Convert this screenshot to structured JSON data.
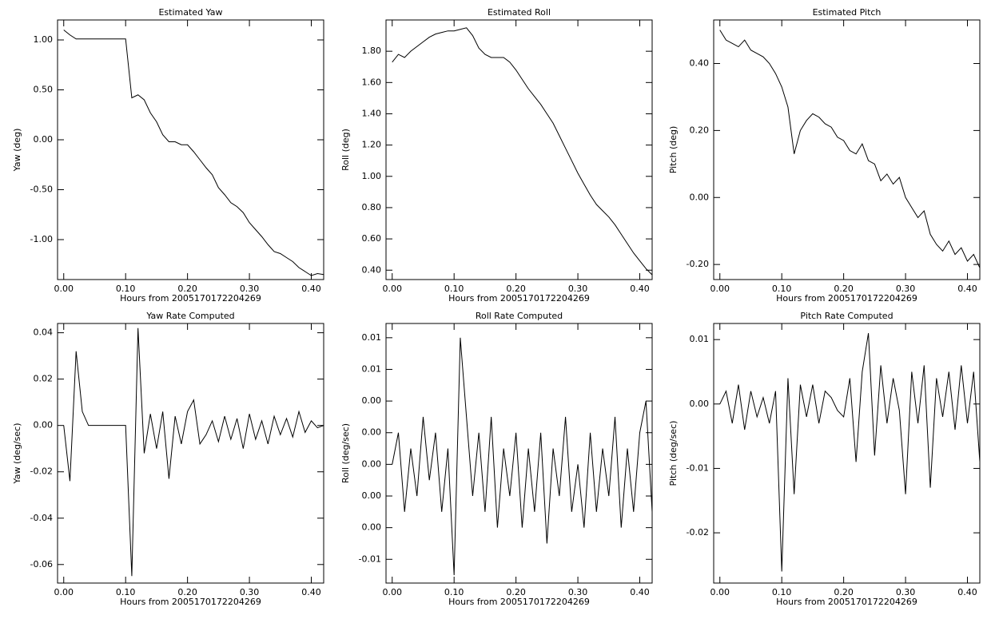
{
  "chart_data": [
    {
      "type": "line",
      "title": "Estimated Yaw",
      "xlabel": "Hours from 2005170172204269",
      "ylabel": "Yaw (deg)",
      "color": "#000000",
      "xlim": [
        -0.01,
        0.42
      ],
      "xticks": [
        {
          "value": 0,
          "label": "0.00"
        },
        {
          "value": 0.1,
          "label": "0.10"
        },
        {
          "value": 0.2,
          "label": "0.20"
        },
        {
          "value": 0.3,
          "label": "0.30"
        },
        {
          "value": 0.4,
          "label": "0.40"
        }
      ],
      "ylim": [
        -1.4,
        1.2
      ],
      "yticks": [
        {
          "value": 1,
          "label": "1.00"
        },
        {
          "value": 0.5,
          "label": "0.50"
        },
        {
          "value": 0,
          "label": "0.00"
        },
        {
          "value": -0.5,
          "label": "-0.50"
        },
        {
          "value": -1,
          "label": "-1.00"
        }
      ],
      "x": [
        0,
        0.01,
        0.02,
        0.03,
        0.04,
        0.05,
        0.06,
        0.07,
        0.08,
        0.09,
        0.1,
        0.11,
        0.12,
        0.13,
        0.14,
        0.15,
        0.16,
        0.17,
        0.18,
        0.19,
        0.2,
        0.21,
        0.22,
        0.23,
        0.24,
        0.25,
        0.26,
        0.27,
        0.28,
        0.29,
        0.3,
        0.31,
        0.32,
        0.33,
        0.34,
        0.35,
        0.36,
        0.37,
        0.38,
        0.39,
        0.4,
        0.41,
        0.42
      ],
      "values": [
        1.1,
        1.05,
        1.01,
        1.01,
        1.01,
        1.01,
        1.01,
        1.01,
        1.01,
        1.01,
        1.01,
        0.42,
        0.45,
        0.4,
        0.27,
        0.18,
        0.05,
        -0.02,
        -0.02,
        -0.05,
        -0.05,
        -0.12,
        -0.2,
        -0.28,
        -0.35,
        -0.48,
        -0.55,
        -0.63,
        -0.67,
        -0.73,
        -0.83,
        -0.9,
        -0.97,
        -1.05,
        -1.12,
        -1.14,
        -1.18,
        -1.22,
        -1.28,
        -1.32,
        -1.36,
        -1.34,
        -1.35
      ]
    },
    {
      "type": "line",
      "title": "Estimated Roll",
      "xlabel": "Hours from 2005170172204269",
      "ylabel": "Roll (deg)",
      "color": "#000000",
      "xlim": [
        -0.01,
        0.42
      ],
      "xticks": [
        {
          "value": 0,
          "label": "0.00"
        },
        {
          "value": 0.1,
          "label": "0.10"
        },
        {
          "value": 0.2,
          "label": "0.20"
        },
        {
          "value": 0.3,
          "label": "0.30"
        },
        {
          "value": 0.4,
          "label": "0.40"
        }
      ],
      "ylim": [
        0.34,
        2.0
      ],
      "yticks": [
        {
          "value": 1.8,
          "label": "1.80"
        },
        {
          "value": 1.6,
          "label": "1.60"
        },
        {
          "value": 1.4,
          "label": "1.40"
        },
        {
          "value": 1.2,
          "label": "1.20"
        },
        {
          "value": 1,
          "label": "1.00"
        },
        {
          "value": 0.8,
          "label": "0.80"
        },
        {
          "value": 0.6,
          "label": "0.60"
        },
        {
          "value": 0.4,
          "label": "0.40"
        }
      ],
      "x": [
        0,
        0.01,
        0.02,
        0.03,
        0.04,
        0.05,
        0.06,
        0.07,
        0.08,
        0.09,
        0.1,
        0.11,
        0.12,
        0.13,
        0.14,
        0.15,
        0.16,
        0.17,
        0.18,
        0.19,
        0.2,
        0.21,
        0.22,
        0.23,
        0.24,
        0.25,
        0.26,
        0.27,
        0.28,
        0.29,
        0.3,
        0.31,
        0.32,
        0.33,
        0.34,
        0.35,
        0.36,
        0.37,
        0.38,
        0.39,
        0.4,
        0.41,
        0.42
      ],
      "values": [
        1.73,
        1.78,
        1.76,
        1.8,
        1.83,
        1.86,
        1.89,
        1.91,
        1.92,
        1.93,
        1.93,
        1.94,
        1.95,
        1.9,
        1.82,
        1.78,
        1.76,
        1.76,
        1.76,
        1.73,
        1.68,
        1.62,
        1.56,
        1.51,
        1.46,
        1.4,
        1.34,
        1.26,
        1.18,
        1.1,
        1.02,
        0.95,
        0.88,
        0.82,
        0.78,
        0.74,
        0.69,
        0.63,
        0.57,
        0.51,
        0.46,
        0.41,
        0.37
      ]
    },
    {
      "type": "line",
      "title": "Estimated Pitch",
      "xlabel": "Hours from 2005170172204269",
      "ylabel": "Pitch (deg)",
      "color": "#000000",
      "xlim": [
        -0.01,
        0.42
      ],
      "xticks": [
        {
          "value": 0,
          "label": "0.00"
        },
        {
          "value": 0.1,
          "label": "0.10"
        },
        {
          "value": 0.2,
          "label": "0.20"
        },
        {
          "value": 0.3,
          "label": "0.30"
        },
        {
          "value": 0.4,
          "label": "0.40"
        }
      ],
      "ylim": [
        -0.245,
        0.53
      ],
      "yticks": [
        {
          "value": 0.4,
          "label": "0.40"
        },
        {
          "value": 0.2,
          "label": "0.20"
        },
        {
          "value": 0,
          "label": "0.00"
        },
        {
          "value": -0.2,
          "label": "-0.20"
        }
      ],
      "x": [
        0,
        0.01,
        0.02,
        0.03,
        0.04,
        0.05,
        0.06,
        0.07,
        0.08,
        0.09,
        0.1,
        0.11,
        0.12,
        0.13,
        0.14,
        0.15,
        0.16,
        0.17,
        0.18,
        0.19,
        0.2,
        0.21,
        0.22,
        0.23,
        0.24,
        0.25,
        0.26,
        0.27,
        0.28,
        0.29,
        0.3,
        0.31,
        0.32,
        0.33,
        0.34,
        0.35,
        0.36,
        0.37,
        0.38,
        0.39,
        0.4,
        0.41,
        0.42
      ],
      "values": [
        0.5,
        0.47,
        0.46,
        0.45,
        0.47,
        0.44,
        0.43,
        0.42,
        0.4,
        0.37,
        0.33,
        0.27,
        0.13,
        0.2,
        0.23,
        0.25,
        0.24,
        0.22,
        0.21,
        0.18,
        0.17,
        0.14,
        0.13,
        0.16,
        0.11,
        0.1,
        0.05,
        0.07,
        0.04,
        0.06,
        0,
        -0.03,
        -0.06,
        -0.04,
        -0.11,
        -0.14,
        -0.16,
        -0.13,
        -0.17,
        -0.15,
        -0.19,
        -0.17,
        -0.21
      ]
    },
    {
      "type": "line",
      "title": "Yaw Rate Computed",
      "xlabel": "Hours from 2005170172204269",
      "ylabel": "Yaw (deg/sec)",
      "color": "#000000",
      "xlim": [
        -0.01,
        0.42
      ],
      "xticks": [
        {
          "value": 0,
          "label": "0.00"
        },
        {
          "value": 0.1,
          "label": "0.10"
        },
        {
          "value": 0.2,
          "label": "0.20"
        },
        {
          "value": 0.3,
          "label": "0.30"
        },
        {
          "value": 0.4,
          "label": "0.40"
        }
      ],
      "ylim": [
        -0.068,
        0.044
      ],
      "yticks": [
        0.04,
        0.02,
        {
          "value": 0,
          "label": "0.00"
        },
        -0.02,
        -0.04,
        -0.06
      ],
      "x": [
        0,
        0.01,
        0.02,
        0.03,
        0.04,
        0.05,
        0.06,
        0.07,
        0.08,
        0.09,
        0.1,
        0.11,
        0.12,
        0.13,
        0.14,
        0.15,
        0.16,
        0.17,
        0.18,
        0.19,
        0.2,
        0.21,
        0.22,
        0.23,
        0.24,
        0.25,
        0.26,
        0.27,
        0.28,
        0.29,
        0.3,
        0.31,
        0.32,
        0.33,
        0.34,
        0.35,
        0.36,
        0.37,
        0.38,
        0.39,
        0.4,
        0.41,
        0.42
      ],
      "values": [
        0,
        -0.024,
        0.032,
        0.006,
        0,
        0,
        0,
        0,
        0,
        0,
        0,
        -0.065,
        0.042,
        -0.012,
        0.005,
        -0.01,
        0.006,
        -0.023,
        0.004,
        -0.008,
        0.006,
        0.011,
        -0.008,
        -0.004,
        0.002,
        -0.007,
        0.004,
        -0.006,
        0.003,
        -0.01,
        0.005,
        -0.006,
        0.002,
        -0.008,
        0.004,
        -0.004,
        0.003,
        -0.005,
        0.006,
        -0.003,
        0.002,
        -0.001,
        0
      ]
    },
    {
      "type": "line",
      "title": "Roll Rate Computed",
      "xlabel": "Hours from 2005170172204269",
      "ylabel": "Roll (deg/sec)",
      "color": "#000000",
      "xlim": [
        -0.01,
        0.42
      ],
      "xticks": [
        {
          "value": 0,
          "label": "0.00"
        },
        {
          "value": 0.1,
          "label": "0.10"
        },
        {
          "value": 0.2,
          "label": "0.20"
        },
        {
          "value": 0.3,
          "label": "0.30"
        },
        {
          "value": 0.4,
          "label": "0.40"
        }
      ],
      "ylim": [
        -0.0075,
        0.0089
      ],
      "yticks": [
        {
          "value": 0.008,
          "label": "0.01"
        },
        {
          "value": 0.006,
          "label": "0.01"
        },
        {
          "value": 0.004,
          "label": "0.00"
        },
        {
          "value": 0.002,
          "label": "0.00"
        },
        {
          "value": 0,
          "label": "0.00"
        },
        {
          "value": -0.002,
          "label": "0.00"
        },
        {
          "value": -0.004,
          "label": "0.00"
        },
        {
          "value": -0.006,
          "label": "-0.01"
        }
      ],
      "x": [
        0,
        0.01,
        0.02,
        0.03,
        0.04,
        0.05,
        0.06,
        0.07,
        0.08,
        0.09,
        0.1,
        0.11,
        0.12,
        0.13,
        0.14,
        0.15,
        0.16,
        0.17,
        0.18,
        0.19,
        0.2,
        0.21,
        0.22,
        0.23,
        0.24,
        0.25,
        0.26,
        0.27,
        0.28,
        0.29,
        0.3,
        0.31,
        0.32,
        0.33,
        0.34,
        0.35,
        0.36,
        0.37,
        0.38,
        0.39,
        0.4,
        0.41,
        0.42
      ],
      "values": [
        0,
        0.002,
        -0.003,
        0.001,
        -0.002,
        0.003,
        -0.001,
        0.002,
        -0.003,
        0.001,
        -0.007,
        0.008,
        0.003,
        -0.002,
        0.002,
        -0.003,
        0.003,
        -0.004,
        0.001,
        -0.002,
        0.002,
        -0.004,
        0.001,
        -0.003,
        0.002,
        -0.005,
        0.001,
        -0.002,
        0.003,
        -0.003,
        0,
        -0.004,
        0.002,
        -0.003,
        0.001,
        -0.002,
        0.003,
        -0.004,
        0.001,
        -0.003,
        0.002,
        0.004,
        -0.003
      ]
    },
    {
      "type": "line",
      "title": "Pitch Rate Computed",
      "xlabel": "Hours from 2005170172204269",
      "ylabel": "Pitch (deg/sec)",
      "color": "#000000",
      "xlim": [
        -0.01,
        0.42
      ],
      "xticks": [
        {
          "value": 0,
          "label": "0.00"
        },
        {
          "value": 0.1,
          "label": "0.10"
        },
        {
          "value": 0.2,
          "label": "0.20"
        },
        {
          "value": 0.3,
          "label": "0.30"
        },
        {
          "value": 0.4,
          "label": "0.40"
        }
      ],
      "ylim": [
        -0.0278,
        0.0125
      ],
      "yticks": [
        0.01,
        {
          "value": 0,
          "label": "0.00"
        },
        -0.01,
        -0.02
      ],
      "x": [
        0,
        0.01,
        0.02,
        0.03,
        0.04,
        0.05,
        0.06,
        0.07,
        0.08,
        0.09,
        0.1,
        0.11,
        0.12,
        0.13,
        0.14,
        0.15,
        0.16,
        0.17,
        0.18,
        0.19,
        0.2,
        0.21,
        0.22,
        0.23,
        0.24,
        0.25,
        0.26,
        0.27,
        0.28,
        0.29,
        0.3,
        0.31,
        0.32,
        0.33,
        0.34,
        0.35,
        0.36,
        0.37,
        0.38,
        0.39,
        0.4,
        0.41,
        0.42
      ],
      "values": [
        0,
        0.002,
        -0.003,
        0.003,
        -0.004,
        0.002,
        -0.002,
        0.001,
        -0.003,
        0.002,
        -0.026,
        0.004,
        -0.014,
        0.003,
        -0.002,
        0.003,
        -0.003,
        0.002,
        0.001,
        -0.001,
        -0.002,
        0.004,
        -0.009,
        0.005,
        0.011,
        -0.008,
        0.006,
        -0.003,
        0.004,
        -0.001,
        -0.014,
        0.005,
        -0.003,
        0.006,
        -0.013,
        0.004,
        -0.002,
        0.005,
        -0.004,
        0.006,
        -0.003,
        0.005,
        -0.009
      ]
    }
  ]
}
